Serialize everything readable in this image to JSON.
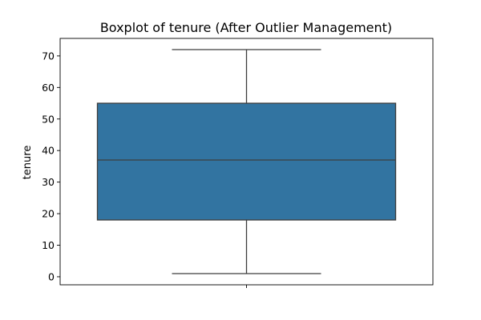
{
  "chart_data": {
    "type": "boxplot",
    "title": "Boxplot of tenure (After Outlier Management)",
    "xlabel": "",
    "ylabel": "tenure",
    "ylim": [
      -2.55,
      75.55
    ],
    "yticks": [
      0,
      10,
      20,
      30,
      40,
      50,
      60,
      70
    ],
    "grid": false,
    "legend": "none",
    "series": [
      {
        "min": 1,
        "q1": 18,
        "median": 37,
        "q3": 55,
        "max": 72,
        "color": "#3274a1",
        "edge_color": "#3d3d3d"
      }
    ]
  }
}
